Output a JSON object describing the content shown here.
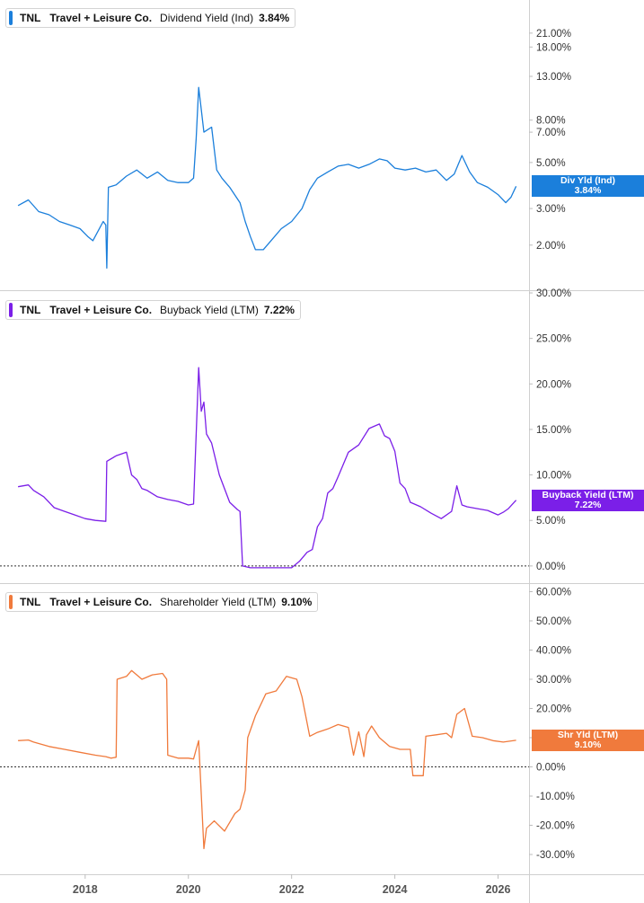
{
  "chart_data": [
    {
      "type": "line",
      "ticker": "TNL",
      "company": "Travel + Leisure Co.",
      "metric": "Dividend Yield (Ind)",
      "current_value": "3.84%",
      "tag_label": "Div Yld (Ind)",
      "color": "#1b7fdb",
      "yscale": "log",
      "y_ticks": [
        "21.00%",
        "18.00%",
        "13.00%",
        "8.00%",
        "7.00%",
        "5.00%",
        "3.00%",
        "2.00%"
      ],
      "y_tick_values": [
        21,
        18,
        13,
        8,
        7,
        5,
        3,
        2
      ],
      "ylim": [
        1.3,
        28
      ],
      "series": [
        {
          "x": [
            2016.7,
            2016.9,
            2017.1,
            2017.3,
            2017.5,
            2017.7,
            2017.9,
            2018.05,
            2018.15,
            2018.35,
            2018.4,
            2018.42,
            2018.45,
            2018.6,
            2018.8,
            2019.0,
            2019.2,
            2019.4,
            2019.6,
            2019.8,
            2020.0,
            2020.1,
            2020.15,
            2020.2,
            2020.25,
            2020.3,
            2020.45,
            2020.55,
            2020.65,
            2020.8,
            2021.0,
            2021.1,
            2021.2,
            2021.3,
            2021.45,
            2021.6,
            2021.8,
            2022.0,
            2022.2,
            2022.35,
            2022.5,
            2022.7,
            2022.9,
            2023.1,
            2023.3,
            2023.5,
            2023.7,
            2023.85,
            2024.0,
            2024.2,
            2024.4,
            2024.6,
            2024.8,
            2025.0,
            2025.15,
            2025.3,
            2025.45,
            2025.6,
            2025.8,
            2026.0,
            2026.15,
            2026.25,
            2026.35
          ],
          "y": [
            3.1,
            3.3,
            2.9,
            2.8,
            2.6,
            2.5,
            2.4,
            2.2,
            2.1,
            2.6,
            2.5,
            1.55,
            3.8,
            3.9,
            4.3,
            4.6,
            4.2,
            4.5,
            4.1,
            4.0,
            4.0,
            4.2,
            6.5,
            11.5,
            9.0,
            7.0,
            7.4,
            4.6,
            4.2,
            3.8,
            3.2,
            2.6,
            2.2,
            1.9,
            1.9,
            2.1,
            2.4,
            2.6,
            3.0,
            3.7,
            4.2,
            4.5,
            4.8,
            4.9,
            4.7,
            4.9,
            5.2,
            5.1,
            4.7,
            4.6,
            4.7,
            4.5,
            4.6,
            4.1,
            4.4,
            5.4,
            4.5,
            4.0,
            3.8,
            3.5,
            3.2,
            3.4,
            3.84
          ]
        }
      ]
    },
    {
      "type": "line",
      "ticker": "TNL",
      "company": "Travel + Leisure Co.",
      "metric": "Buyback Yield (LTM)",
      "current_value": "7.22%",
      "tag_label": "Buyback Yield (LTM)",
      "color": "#7b1fe8",
      "yscale": "linear",
      "y_ticks": [
        "30.00%",
        "25.00%",
        "20.00%",
        "15.00%",
        "10.00%",
        "5.00%",
        "0.00%"
      ],
      "y_tick_values": [
        30,
        25,
        20,
        15,
        10,
        5,
        0
      ],
      "ylim": [
        -1,
        30
      ],
      "series": [
        {
          "x": [
            2016.7,
            2016.9,
            2017.0,
            2017.2,
            2017.4,
            2017.6,
            2017.8,
            2018.0,
            2018.2,
            2018.4,
            2018.42,
            2018.6,
            2018.8,
            2018.9,
            2019.0,
            2019.1,
            2019.2,
            2019.4,
            2019.6,
            2019.8,
            2020.0,
            2020.1,
            2020.2,
            2020.25,
            2020.3,
            2020.35,
            2020.45,
            2020.6,
            2020.8,
            2020.95,
            2021.0,
            2021.05,
            2021.2,
            2021.5,
            2021.8,
            2022.0,
            2022.15,
            2022.3,
            2022.4,
            2022.5,
            2022.6,
            2022.7,
            2022.8,
            2022.9,
            2023.1,
            2023.3,
            2023.5,
            2023.7,
            2023.8,
            2023.9,
            2024.0,
            2024.1,
            2024.2,
            2024.3,
            2024.5,
            2024.7,
            2024.9,
            2025.1,
            2025.2,
            2025.3,
            2025.4,
            2025.6,
            2025.8,
            2026.0,
            2026.1,
            2026.2,
            2026.35
          ],
          "y": [
            8.7,
            8.9,
            8.3,
            7.6,
            6.4,
            6.0,
            5.6,
            5.2,
            5.0,
            4.9,
            11.5,
            12.1,
            12.5,
            10.0,
            9.5,
            8.5,
            8.3,
            7.6,
            7.3,
            7.1,
            6.7,
            6.8,
            21.8,
            17.0,
            18.0,
            14.5,
            13.5,
            10.0,
            7.0,
            6.2,
            6.0,
            0.0,
            -0.2,
            -0.2,
            -0.2,
            -0.2,
            0.5,
            1.5,
            1.8,
            4.3,
            5.2,
            8.0,
            8.5,
            9.8,
            12.5,
            13.3,
            15.1,
            15.6,
            14.3,
            14.0,
            12.6,
            9.1,
            8.5,
            7.0,
            6.5,
            5.8,
            5.2,
            6.0,
            8.8,
            6.7,
            6.5,
            6.3,
            6.1,
            5.6,
            5.9,
            6.3,
            7.22
          ]
        }
      ]
    },
    {
      "type": "line",
      "ticker": "TNL",
      "company": "Travel + Leisure Co.",
      "metric": "Shareholder Yield (LTM)",
      "current_value": "9.10%",
      "tag_label": "Shr Yld (LTM)",
      "color": "#f07a3c",
      "yscale": "linear",
      "y_ticks": [
        "60.00%",
        "50.00%",
        "40.00%",
        "30.00%",
        "20.00%",
        "10.00%",
        "0.00%",
        "-10.00%",
        "-20.00%",
        "-30.00%"
      ],
      "y_tick_values": [
        60,
        50,
        40,
        30,
        20,
        10,
        0,
        -10,
        -20,
        -30
      ],
      "ylim": [
        -34,
        62
      ],
      "series": [
        {
          "x": [
            2016.7,
            2016.9,
            2017.0,
            2017.3,
            2017.6,
            2017.9,
            2018.2,
            2018.4,
            2018.5,
            2018.6,
            2018.62,
            2018.8,
            2018.9,
            2019.1,
            2019.3,
            2019.5,
            2019.58,
            2019.6,
            2019.8,
            2020.0,
            2020.1,
            2020.15,
            2020.2,
            2020.3,
            2020.35,
            2020.5,
            2020.7,
            2020.9,
            2021.0,
            2021.1,
            2021.15,
            2021.3,
            2021.5,
            2021.7,
            2021.9,
            2022.1,
            2022.2,
            2022.35,
            2022.5,
            2022.7,
            2022.9,
            2023.1,
            2023.2,
            2023.3,
            2023.4,
            2023.45,
            2023.55,
            2023.7,
            2023.9,
            2024.1,
            2024.3,
            2024.35,
            2024.55,
            2024.6,
            2024.8,
            2025.0,
            2025.1,
            2025.2,
            2025.35,
            2025.5,
            2025.7,
            2025.9,
            2026.1,
            2026.35
          ],
          "y": [
            9.0,
            9.2,
            8.5,
            7.0,
            6.0,
            5.0,
            4.0,
            3.5,
            3.0,
            3.3,
            30.0,
            31.0,
            33.0,
            30.0,
            31.5,
            32.0,
            30.0,
            4.0,
            3.0,
            3.0,
            2.7,
            6.0,
            9.0,
            -28.0,
            -21.0,
            -18.5,
            -22.0,
            -16.0,
            -14.5,
            -8.0,
            10.0,
            17.5,
            25.0,
            26.0,
            31.0,
            30.0,
            24.0,
            10.5,
            11.8,
            13.0,
            14.5,
            13.5,
            4.0,
            12.0,
            3.5,
            11.0,
            14.0,
            10.0,
            7.0,
            6.0,
            6.0,
            -3.0,
            -3.0,
            10.5,
            11.0,
            11.5,
            10.0,
            18.0,
            20.0,
            10.5,
            10.0,
            9.0,
            8.5,
            9.1
          ]
        }
      ]
    }
  ],
  "x_axis": {
    "tick_labels": [
      "2018",
      "2020",
      "2022",
      "2024",
      "2026"
    ],
    "tick_values": [
      2018,
      2020,
      2022,
      2024,
      2026
    ],
    "xlim": [
      2016.35,
      2026.6
    ]
  }
}
